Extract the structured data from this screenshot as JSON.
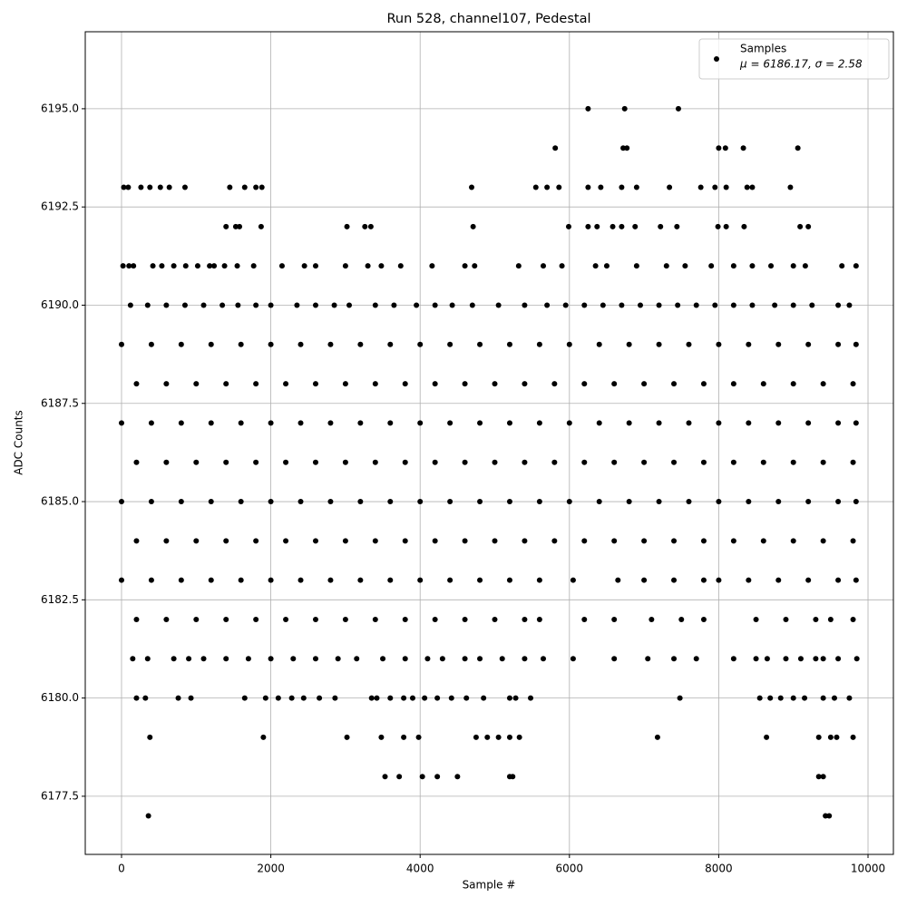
{
  "chart_data": {
    "type": "scatter",
    "title": "Run 528, channel107, Pedestal",
    "xlabel": "Sample #",
    "ylabel": "ADC Counts",
    "legend_note": "μ = 6186.17, σ = 2.58",
    "legend_position": "upper right",
    "grid": true,
    "xlim": [
      -486,
      10340
    ],
    "ylim": [
      6176.02,
      6196.96
    ],
    "xticks": [
      0,
      2000,
      4000,
      6000,
      8000,
      10000
    ],
    "yticks": [
      6177.5,
      {
        "value": 6180,
        "label": "6180.0"
      },
      6182.5,
      {
        "value": 6185,
        "label": "6185.0"
      },
      6187.5,
      {
        "value": 6190,
        "label": "6190.0"
      },
      6192.5,
      {
        "value": 6195,
        "label": "6195.0"
      }
    ],
    "x": [
      6250,
      6740,
      7460,
      5810,
      6720,
      6770,
      8000,
      8090,
      8330,
      9060,
      30,
      90,
      260,
      380,
      520,
      640,
      850,
      1450,
      1650,
      1800,
      1880,
      4690,
      5550,
      5700,
      5860,
      6250,
      6420,
      6700,
      6900,
      7340,
      7760,
      7950,
      8100,
      8380,
      8450,
      8960,
      1400,
      1530,
      1580,
      1870,
      3020,
      3260,
      3340,
      4710,
      5990,
      6250,
      6370,
      6580,
      6700,
      6880,
      7220,
      7440,
      7990,
      8100,
      8340,
      9090,
      9200,
      20,
      100,
      160,
      420,
      540,
      700,
      860,
      1020,
      1180,
      1240,
      1380,
      1550,
      1770,
      2150,
      2450,
      2600,
      3000,
      3300,
      3480,
      3740,
      4160,
      4600,
      4730,
      5320,
      5650,
      5900,
      6350,
      6500,
      6900,
      7300,
      7550,
      7900,
      8200,
      8450,
      8700,
      9000,
      9160,
      9650,
      9840,
      120,
      350,
      600,
      850,
      1100,
      1350,
      1560,
      1800,
      2000,
      2350,
      2600,
      2850,
      3050,
      3400,
      3650,
      3950,
      4200,
      4430,
      4700,
      5050,
      5400,
      5700,
      5950,
      6200,
      6450,
      6700,
      6950,
      7200,
      7450,
      7700,
      7950,
      8200,
      8450,
      8750,
      9000,
      9250,
      9600,
      9750,
      0,
      400,
      800,
      1200,
      1600,
      2000,
      2400,
      2800,
      3200,
      3600,
      4000,
      4400,
      4800,
      5200,
      5600,
      6000,
      6400,
      6800,
      7200,
      7600,
      8000,
      8400,
      8800,
      9200,
      9600,
      9840,
      200,
      600,
      1000,
      1400,
      1800,
      2200,
      2600,
      3000,
      3400,
      3800,
      4200,
      4600,
      5000,
      5400,
      5800,
      6200,
      6600,
      7000,
      7400,
      7800,
      8200,
      8600,
      9000,
      9400,
      9800,
      0,
      400,
      800,
      1200,
      1600,
      2000,
      2400,
      2800,
      3200,
      3600,
      4000,
      4400,
      4800,
      5200,
      5600,
      6000,
      6400,
      6800,
      7200,
      7600,
      8000,
      8400,
      8800,
      9200,
      9600,
      9840,
      200,
      600,
      1000,
      1400,
      1800,
      2200,
      2600,
      3000,
      3400,
      3800,
      4200,
      4600,
      5000,
      5400,
      5800,
      6200,
      6600,
      7000,
      7400,
      7800,
      8200,
      8600,
      9000,
      9400,
      9800,
      0,
      400,
      800,
      1200,
      1600,
      2000,
      2400,
      2800,
      3200,
      3600,
      4000,
      4400,
      4800,
      5200,
      5600,
      6000,
      6400,
      6800,
      7200,
      7600,
      8000,
      8400,
      8800,
      9200,
      9600,
      9840,
      200,
      600,
      1000,
      1400,
      1800,
      2200,
      2600,
      3000,
      3400,
      3800,
      4200,
      4600,
      5000,
      5400,
      5800,
      6200,
      6600,
      7000,
      7400,
      7800,
      8200,
      8600,
      9000,
      9400,
      9800,
      0,
      400,
      800,
      1200,
      1600,
      2000,
      2400,
      2800,
      3200,
      3600,
      4000,
      4400,
      4800,
      5200,
      5600,
      6050,
      6650,
      7000,
      7400,
      7800,
      8000,
      8400,
      8800,
      9200,
      9600,
      9840,
      200,
      600,
      1000,
      1400,
      1800,
      2200,
      2600,
      3000,
      3400,
      3800,
      4200,
      4600,
      5000,
      5400,
      5600,
      6200,
      6600,
      7100,
      7500,
      7800,
      8500,
      8900,
      9300,
      9500,
      9800,
      150,
      350,
      700,
      900,
      1100,
      1400,
      1700,
      2000,
      2300,
      2600,
      2900,
      3150,
      3500,
      3800,
      4100,
      4300,
      4600,
      4800,
      5100,
      5400,
      5650,
      6050,
      6600,
      7050,
      7400,
      7700,
      8200,
      8500,
      8650,
      8900,
      9100,
      9300,
      9400,
      9600,
      9850,
      200,
      320,
      760,
      930,
      1650,
      1930,
      2100,
      2280,
      2440,
      2650,
      2860,
      3350,
      3420,
      3600,
      3780,
      3900,
      4060,
      4230,
      4420,
      4620,
      4850,
      5200,
      5280,
      5480,
      7480,
      8550,
      8690,
      8830,
      9000,
      9150,
      9400,
      9550,
      9750,
      380,
      1900,
      3020,
      3480,
      3780,
      3980,
      4750,
      4900,
      5050,
      5200,
      5330,
      7180,
      8640,
      9340,
      9500,
      9580,
      9800,
      3530,
      3720,
      4030,
      4230,
      4500,
      5200,
      5240,
      9340,
      9400,
      360,
      9430,
      9480
    ],
    "series": [
      {
        "name": "Samples",
        "color": "#000000",
        "values": [
          6195,
          6195,
          6195,
          6194,
          6194,
          6194,
          6194,
          6194,
          6194,
          6194,
          6193,
          6193,
          6193,
          6193,
          6193,
          6193,
          6193,
          6193,
          6193,
          6193,
          6193,
          6193,
          6193,
          6193,
          6193,
          6193,
          6193,
          6193,
          6193,
          6193,
          6193,
          6193,
          6193,
          6193,
          6193,
          6193,
          6192,
          6192,
          6192,
          6192,
          6192,
          6192,
          6192,
          6192,
          6192,
          6192,
          6192,
          6192,
          6192,
          6192,
          6192,
          6192,
          6192,
          6192,
          6192,
          6192,
          6192,
          6191,
          6191,
          6191,
          6191,
          6191,
          6191,
          6191,
          6191,
          6191,
          6191,
          6191,
          6191,
          6191,
          6191,
          6191,
          6191,
          6191,
          6191,
          6191,
          6191,
          6191,
          6191,
          6191,
          6191,
          6191,
          6191,
          6191,
          6191,
          6191,
          6191,
          6191,
          6191,
          6191,
          6191,
          6191,
          6191,
          6191,
          6191,
          6191,
          6190,
          6190,
          6190,
          6190,
          6190,
          6190,
          6190,
          6190,
          6190,
          6190,
          6190,
          6190,
          6190,
          6190,
          6190,
          6190,
          6190,
          6190,
          6190,
          6190,
          6190,
          6190,
          6190,
          6190,
          6190,
          6190,
          6190,
          6190,
          6190,
          6190,
          6190,
          6190,
          6190,
          6190,
          6190,
          6190,
          6190,
          6190,
          6189,
          6189,
          6189,
          6189,
          6189,
          6189,
          6189,
          6189,
          6189,
          6189,
          6189,
          6189,
          6189,
          6189,
          6189,
          6189,
          6189,
          6189,
          6189,
          6189,
          6189,
          6189,
          6189,
          6189,
          6189,
          6189,
          6188,
          6188,
          6188,
          6188,
          6188,
          6188,
          6188,
          6188,
          6188,
          6188,
          6188,
          6188,
          6188,
          6188,
          6188,
          6188,
          6188,
          6188,
          6188,
          6188,
          6188,
          6188,
          6188,
          6188,
          6188,
          6187,
          6187,
          6187,
          6187,
          6187,
          6187,
          6187,
          6187,
          6187,
          6187,
          6187,
          6187,
          6187,
          6187,
          6187,
          6187,
          6187,
          6187,
          6187,
          6187,
          6187,
          6187,
          6187,
          6187,
          6187,
          6187,
          6186,
          6186,
          6186,
          6186,
          6186,
          6186,
          6186,
          6186,
          6186,
          6186,
          6186,
          6186,
          6186,
          6186,
          6186,
          6186,
          6186,
          6186,
          6186,
          6186,
          6186,
          6186,
          6186,
          6186,
          6186,
          6185,
          6185,
          6185,
          6185,
          6185,
          6185,
          6185,
          6185,
          6185,
          6185,
          6185,
          6185,
          6185,
          6185,
          6185,
          6185,
          6185,
          6185,
          6185,
          6185,
          6185,
          6185,
          6185,
          6185,
          6185,
          6185,
          6184,
          6184,
          6184,
          6184,
          6184,
          6184,
          6184,
          6184,
          6184,
          6184,
          6184,
          6184,
          6184,
          6184,
          6184,
          6184,
          6184,
          6184,
          6184,
          6184,
          6184,
          6184,
          6184,
          6184,
          6184,
          6183,
          6183,
          6183,
          6183,
          6183,
          6183,
          6183,
          6183,
          6183,
          6183,
          6183,
          6183,
          6183,
          6183,
          6183,
          6183,
          6183,
          6183,
          6183,
          6183,
          6183,
          6183,
          6183,
          6183,
          6183,
          6183,
          6182,
          6182,
          6182,
          6182,
          6182,
          6182,
          6182,
          6182,
          6182,
          6182,
          6182,
          6182,
          6182,
          6182,
          6182,
          6182,
          6182,
          6182,
          6182,
          6182,
          6182,
          6182,
          6182,
          6182,
          6182,
          6181,
          6181,
          6181,
          6181,
          6181,
          6181,
          6181,
          6181,
          6181,
          6181,
          6181,
          6181,
          6181,
          6181,
          6181,
          6181,
          6181,
          6181,
          6181,
          6181,
          6181,
          6181,
          6181,
          6181,
          6181,
          6181,
          6181,
          6181,
          6181,
          6181,
          6181,
          6181,
          6181,
          6181,
          6181,
          6180,
          6180,
          6180,
          6180,
          6180,
          6180,
          6180,
          6180,
          6180,
          6180,
          6180,
          6180,
          6180,
          6180,
          6180,
          6180,
          6180,
          6180,
          6180,
          6180,
          6180,
          6180,
          6180,
          6180,
          6180,
          6180,
          6180,
          6180,
          6180,
          6180,
          6180,
          6180,
          6180,
          6179,
          6179,
          6179,
          6179,
          6179,
          6179,
          6179,
          6179,
          6179,
          6179,
          6179,
          6179,
          6179,
          6179,
          6179,
          6179,
          6179,
          6178,
          6178,
          6178,
          6178,
          6178,
          6178,
          6178,
          6178,
          6178,
          6177,
          6177,
          6177
        ]
      }
    ]
  }
}
